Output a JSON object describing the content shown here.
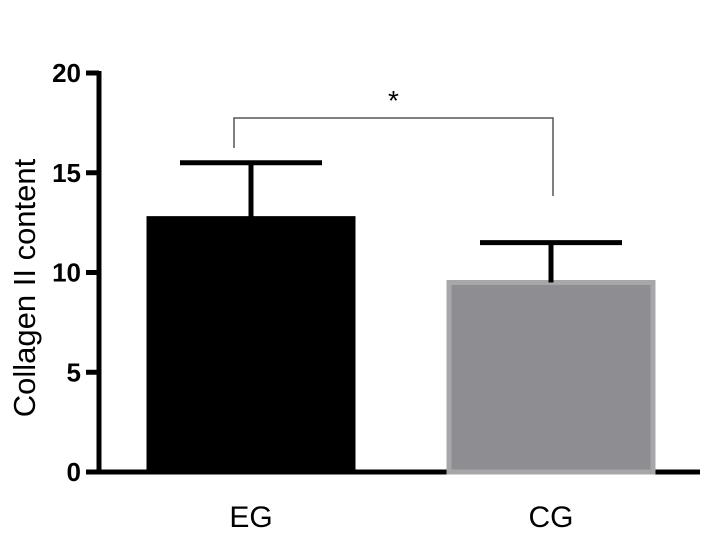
{
  "chart_data": {
    "type": "bar",
    "categories": [
      "EG",
      "CG"
    ],
    "values": [
      12.7,
      9.5
    ],
    "errors": [
      2.8,
      2.0
    ],
    "ylabel": "Collagen II content",
    "xlabel": "",
    "ylim": [
      0,
      20
    ],
    "yticks": [
      "0",
      "5",
      "10",
      "15",
      "20"
    ],
    "bar_colors": [
      "#000000",
      "#8e8e92"
    ],
    "bar_border_colors": [
      "#000000",
      "#a7a7aa"
    ],
    "grid": false,
    "significance": {
      "from": "EG",
      "to": "CG",
      "label": "*"
    }
  }
}
